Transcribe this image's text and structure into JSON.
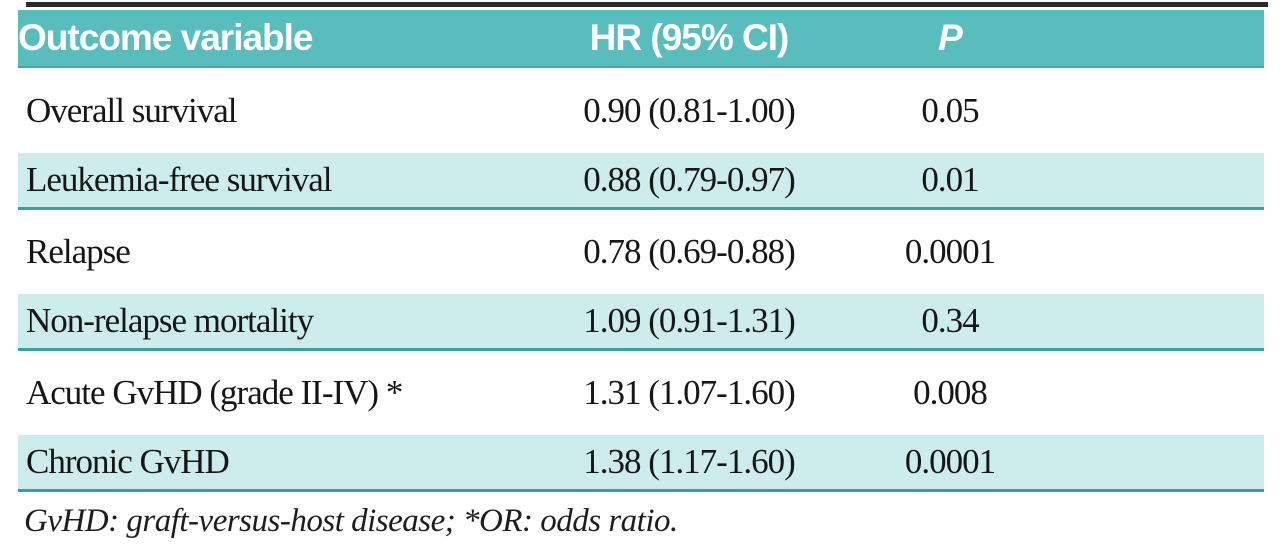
{
  "table": {
    "headers": {
      "outcome": "Outcome variable",
      "hr_ci": "HR (95% CI)",
      "p": "P"
    },
    "rows": [
      {
        "outcome": "Overall survival",
        "hr_ci": "0.90 (0.81-1.00)",
        "p": "0.05"
      },
      {
        "outcome": "Leukemia-free survival",
        "hr_ci": "0.88 (0.79-0.97)",
        "p": "0.01"
      },
      {
        "outcome": "Relapse",
        "hr_ci": "0.78 (0.69-0.88)",
        "p": "0.0001"
      },
      {
        "outcome": "Non-relapse mortality",
        "hr_ci": "1.09 (0.91-1.31)",
        "p": "0.34"
      },
      {
        "outcome": "Acute GvHD (grade II-IV) *",
        "hr_ci": "1.31 (1.07-1.60)",
        "p": "0.008"
      },
      {
        "outcome": "Chronic GvHD",
        "hr_ci": "1.38 (1.17-1.60)",
        "p": "0.0001"
      }
    ],
    "footnote": "GvHD: graft-versus-host disease; *OR: odds ratio."
  },
  "colors": {
    "header_bg": "#5abdbd",
    "header_text": "#ffffff",
    "shaded_row_bg": "#cdecec",
    "row_rule": "#3d9e9e",
    "header_rule": "#4da4a4",
    "top_rule": "#2b2b2b",
    "body_text": "#161616"
  },
  "chart_data": {
    "type": "table",
    "title": "",
    "columns": [
      "Outcome variable",
      "HR (95% CI)",
      "P"
    ],
    "rows": [
      [
        "Overall survival",
        "0.90 (0.81-1.00)",
        "0.05"
      ],
      [
        "Leukemia-free survival",
        "0.88 (0.79-0.97)",
        "0.01"
      ],
      [
        "Relapse",
        "0.78 (0.69-0.88)",
        "0.0001"
      ],
      [
        "Non-relapse mortality",
        "1.09 (0.91-1.31)",
        "0.34"
      ],
      [
        "Acute GvHD (grade II-IV) *",
        "1.31 (1.07-1.60)",
        "0.008"
      ],
      [
        "Chronic GvHD",
        "1.38 (1.17-1.60)",
        "0.0001"
      ]
    ],
    "footnote": "GvHD: graft-versus-host disease; *OR: odds ratio.",
    "layout_hints": {
      "shaded_rows": [
        1,
        3,
        5
      ],
      "hr_values": [
        0.9,
        0.88,
        0.78,
        1.09,
        1.31,
        1.38
      ],
      "hr_ci_low": [
        0.81,
        0.79,
        0.69,
        0.91,
        1.07,
        1.17
      ],
      "hr_ci_high": [
        1.0,
        0.97,
        0.88,
        1.31,
        1.6,
        1.6
      ],
      "p_values": [
        0.05,
        0.01,
        0.0001,
        0.34,
        0.008,
        0.0001
      ]
    }
  }
}
